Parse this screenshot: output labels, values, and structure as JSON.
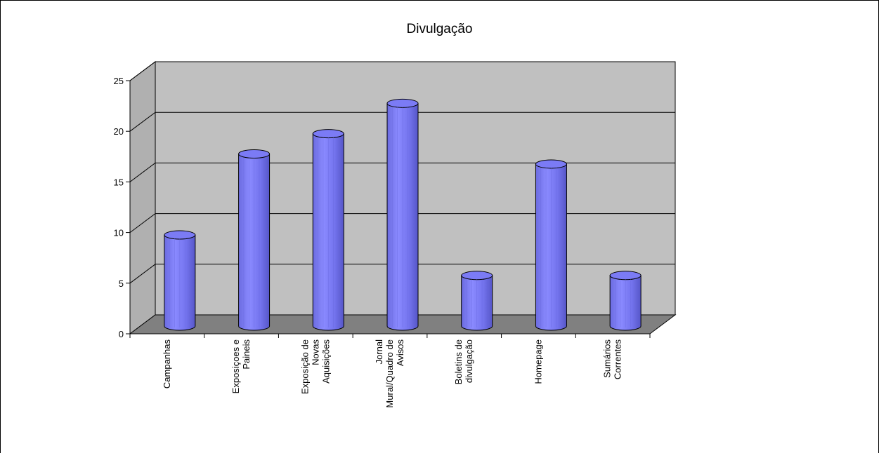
{
  "chart_data": {
    "type": "bar",
    "style": "3d-cylinder",
    "title": "Divulgação",
    "xlabel": "",
    "ylabel": "",
    "ylim": [
      0,
      25
    ],
    "yticks": [
      "0",
      "5",
      "10",
      "15",
      "20",
      "25"
    ],
    "grid": true,
    "legend": "none",
    "categories": [
      [
        "Campanhas"
      ],
      [
        "Exposiçoes e",
        "Paineis"
      ],
      [
        "Exposição de",
        "Novas",
        "Aquisições"
      ],
      [
        "Jornal",
        "Mural/Quadro de",
        "Avisos"
      ],
      [
        "Boletins de",
        "divulgação"
      ],
      [
        "Homepage"
      ],
      [
        "Sumários",
        "Correntes"
      ]
    ],
    "values": [
      9,
      17,
      19,
      22,
      5,
      16,
      5
    ],
    "colors": {
      "bar": "#7b7bf5",
      "bar_dark": "#5050c0",
      "back_wall": "#c0c0c0",
      "side_wall": "#b0b0b0",
      "floor": "#808080"
    }
  }
}
